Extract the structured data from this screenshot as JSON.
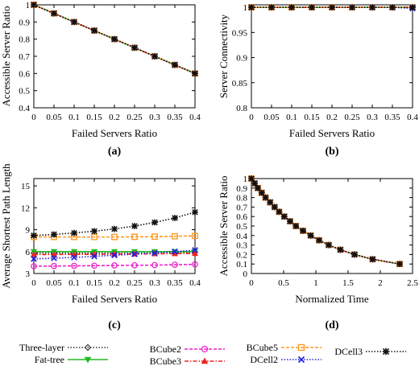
{
  "chart_data": [
    {
      "id": "a",
      "panel_label": "(a)",
      "type": "line",
      "xlabel": "Failed Servers Ratio",
      "ylabel": "Accessible Server Ratio",
      "xlim": [
        0,
        0.4
      ],
      "ylim": [
        0.4,
        1
      ],
      "xticks": [
        0,
        0.05,
        0.1,
        0.15,
        0.2,
        0.25,
        0.3,
        0.35,
        0.4
      ],
      "xtick_labels": [
        "0",
        "0.05",
        "0.1",
        "0.15",
        "0.2",
        "0.25",
        "0.3",
        "0.35",
        "0.4"
      ],
      "yticks": [
        0.4,
        0.5,
        0.6,
        0.7,
        0.8,
        0.9,
        1
      ],
      "ytick_labels": [
        "0.4",
        "0.5",
        "0.6",
        "0.7",
        "0.8",
        "0.9",
        "1"
      ],
      "x": [
        0,
        0.05,
        0.1,
        0.15,
        0.2,
        0.25,
        0.3,
        0.35,
        0.4
      ],
      "series": [
        {
          "key": "three_layer",
          "values": [
            1,
            0.95,
            0.9,
            0.85,
            0.8,
            0.75,
            0.7,
            0.65,
            0.6
          ]
        },
        {
          "key": "fat_tree",
          "values": [
            1,
            0.95,
            0.9,
            0.85,
            0.8,
            0.75,
            0.7,
            0.65,
            0.6
          ]
        },
        {
          "key": "bcube2",
          "values": [
            1,
            0.95,
            0.9,
            0.85,
            0.8,
            0.75,
            0.7,
            0.65,
            0.6
          ]
        },
        {
          "key": "bcube3",
          "values": [
            1,
            0.95,
            0.9,
            0.85,
            0.8,
            0.75,
            0.7,
            0.65,
            0.6
          ]
        },
        {
          "key": "bcube5",
          "values": [
            1,
            0.95,
            0.9,
            0.85,
            0.8,
            0.75,
            0.7,
            0.65,
            0.6
          ]
        },
        {
          "key": "dcell2",
          "values": [
            1,
            0.95,
            0.9,
            0.85,
            0.8,
            0.75,
            0.7,
            0.65,
            0.6
          ]
        },
        {
          "key": "dcell3",
          "values": [
            1,
            0.95,
            0.9,
            0.85,
            0.8,
            0.75,
            0.7,
            0.65,
            0.6
          ]
        }
      ]
    },
    {
      "id": "b",
      "panel_label": "(b)",
      "type": "line",
      "xlabel": "Failed Servers Ratio",
      "ylabel": "Server Connectivity",
      "xlim": [
        0,
        0.4
      ],
      "ylim": [
        0.8,
        1.005
      ],
      "xticks": [
        0,
        0.05,
        0.1,
        0.15,
        0.2,
        0.25,
        0.3,
        0.35,
        0.4
      ],
      "xtick_labels": [
        "0",
        "0.05",
        "0.1",
        "0.15",
        "0.2",
        "0.25",
        "0.3",
        "0.35",
        "0.4"
      ],
      "yticks": [
        0.8,
        0.85,
        0.9,
        0.95,
        1
      ],
      "ytick_labels": [
        "0.8",
        "0.85",
        "0.9",
        "0.95",
        "1"
      ],
      "x": [
        0,
        0.05,
        0.1,
        0.15,
        0.2,
        0.25,
        0.3,
        0.35,
        0.4
      ],
      "series": [
        {
          "key": "three_layer",
          "values": [
            1,
            1,
            1,
            1,
            1,
            1,
            1,
            1,
            1
          ]
        },
        {
          "key": "fat_tree",
          "values": [
            1,
            1,
            1,
            1,
            1,
            1,
            1,
            1,
            1
          ]
        },
        {
          "key": "bcube2",
          "values": [
            1,
            1,
            1,
            1,
            1,
            1,
            1,
            1,
            1
          ]
        },
        {
          "key": "bcube3",
          "values": [
            1,
            1,
            1,
            1,
            1,
            1,
            1,
            1,
            1
          ]
        },
        {
          "key": "bcube5",
          "values": [
            1,
            1,
            1,
            1,
            1,
            1,
            1,
            1,
            1
          ]
        },
        {
          "key": "dcell2",
          "values": [
            1,
            1,
            1,
            1,
            1,
            1,
            1,
            1,
            0.998
          ]
        },
        {
          "key": "dcell3",
          "values": [
            1,
            1,
            1,
            1,
            1,
            1,
            1,
            1,
            1
          ]
        }
      ]
    },
    {
      "id": "c",
      "panel_label": "(c)",
      "type": "line",
      "xlabel": "Failed Servers Ratio",
      "ylabel": "Average Shortest Path Length",
      "xlim": [
        0,
        0.4
      ],
      "ylim": [
        3,
        16
      ],
      "xticks": [
        0,
        0.05,
        0.1,
        0.15,
        0.2,
        0.25,
        0.3,
        0.35,
        0.4
      ],
      "xtick_labels": [
        "0",
        "0.05",
        "0.1",
        "0.15",
        "0.2",
        "0.25",
        "0.3",
        "0.35",
        "0.4"
      ],
      "yticks": [
        3,
        6,
        9,
        12,
        15
      ],
      "ytick_labels": [
        "3",
        "6",
        "9",
        "12",
        "15"
      ],
      "x": [
        0,
        0.05,
        0.1,
        0.15,
        0.2,
        0.25,
        0.3,
        0.35,
        0.4
      ],
      "series": [
        {
          "key": "three_layer",
          "values": [
            5.8,
            5.8,
            5.8,
            5.8,
            5.8,
            5.8,
            5.8,
            5.85,
            5.9
          ]
        },
        {
          "key": "fat_tree",
          "values": [
            6,
            6,
            6,
            6,
            6,
            6,
            6,
            6,
            6
          ]
        },
        {
          "key": "bcube2",
          "values": [
            4,
            4.02,
            4.05,
            4.07,
            4.1,
            4.12,
            4.15,
            4.2,
            4.25
          ]
        },
        {
          "key": "bcube3",
          "values": [
            5.6,
            5.6,
            5.62,
            5.63,
            5.65,
            5.67,
            5.7,
            5.72,
            5.75
          ]
        },
        {
          "key": "bcube5",
          "values": [
            8,
            8,
            8,
            8,
            8,
            8.02,
            8.05,
            8.1,
            8.15
          ]
        },
        {
          "key": "dcell2",
          "values": [
            5,
            5.1,
            5.2,
            5.35,
            5.5,
            5.65,
            5.8,
            6,
            6.2
          ]
        },
        {
          "key": "dcell3",
          "values": [
            8.2,
            8.35,
            8.55,
            8.8,
            9.1,
            9.5,
            10,
            10.6,
            11.4
          ]
        }
      ]
    },
    {
      "id": "d",
      "panel_label": "(d)",
      "type": "line",
      "xlabel": "Normalized Time",
      "ylabel": "Accessible Server Ratio",
      "xlim": [
        0,
        2.5
      ],
      "ylim": [
        0,
        1
      ],
      "xticks": [
        0,
        0.5,
        1,
        1.5,
        2,
        2.5
      ],
      "xtick_labels": [
        "0",
        "0.5",
        "1",
        "1.5",
        "2",
        "2.5"
      ],
      "yticks": [
        0,
        0.1,
        0.2,
        0.3,
        0.4,
        0.5,
        0.6,
        0.7,
        0.8,
        0.9,
        1
      ],
      "ytick_labels": [
        "0",
        "0.1",
        "0.2",
        "0.3",
        "0.4",
        "0.5",
        "0.6",
        "0.7",
        "0.8",
        "0.9",
        "1"
      ],
      "x": [
        0,
        0.05,
        0.1,
        0.16,
        0.22,
        0.29,
        0.36,
        0.43,
        0.51,
        0.6,
        0.69,
        0.8,
        0.92,
        1.05,
        1.2,
        1.38,
        1.6,
        1.88,
        2.3
      ],
      "series": [
        {
          "key": "three_layer",
          "values": [
            1,
            0.95,
            0.9,
            0.85,
            0.8,
            0.75,
            0.7,
            0.65,
            0.6,
            0.55,
            0.5,
            0.45,
            0.4,
            0.35,
            0.3,
            0.25,
            0.2,
            0.15,
            0.1
          ]
        },
        {
          "key": "fat_tree",
          "values": [
            1,
            0.95,
            0.9,
            0.85,
            0.8,
            0.75,
            0.7,
            0.65,
            0.6,
            0.55,
            0.5,
            0.45,
            0.4,
            0.35,
            0.3,
            0.25,
            0.2,
            0.15,
            0.1
          ]
        },
        {
          "key": "bcube2",
          "values": [
            1,
            0.95,
            0.9,
            0.85,
            0.8,
            0.75,
            0.7,
            0.65,
            0.6,
            0.55,
            0.5,
            0.45,
            0.4,
            0.35,
            0.3,
            0.25,
            0.2,
            0.15,
            0.1
          ]
        },
        {
          "key": "bcube3",
          "values": [
            1,
            0.95,
            0.9,
            0.85,
            0.8,
            0.75,
            0.7,
            0.65,
            0.6,
            0.55,
            0.5,
            0.45,
            0.4,
            0.35,
            0.3,
            0.25,
            0.2,
            0.15,
            0.1
          ]
        },
        {
          "key": "bcube5",
          "values": [
            1,
            0.95,
            0.9,
            0.85,
            0.8,
            0.75,
            0.7,
            0.65,
            0.6,
            0.55,
            0.5,
            0.45,
            0.4,
            0.35,
            0.3,
            0.25,
            0.2,
            0.15,
            0.1
          ]
        },
        {
          "key": "dcell2",
          "values": [
            1,
            0.95,
            0.9,
            0.85,
            0.8,
            0.75,
            0.7,
            0.65,
            0.6,
            0.55,
            0.5,
            0.45,
            0.4,
            0.35,
            0.3,
            0.25,
            0.2,
            0.15,
            0.1
          ]
        },
        {
          "key": "dcell3",
          "values": [
            1,
            0.95,
            0.9,
            0.85,
            0.8,
            0.75,
            0.7,
            0.65,
            0.6,
            0.55,
            0.5,
            0.45,
            0.4,
            0.35,
            0.3,
            0.25,
            0.2,
            0.15,
            0.1
          ]
        }
      ]
    }
  ],
  "legend": {
    "placement": "bottom",
    "entries": [
      {
        "key": "three_layer",
        "label": "Three-layer",
        "color": "#333333",
        "marker": "diamond",
        "dash": "dot"
      },
      {
        "key": "fat_tree",
        "label": "Fat-tree",
        "color": "#22bb22",
        "marker": "triangle-down",
        "dash": "solid"
      },
      {
        "key": "bcube2",
        "label": "BCube2",
        "color": "#ee22cc",
        "marker": "circle",
        "dash": "dash"
      },
      {
        "key": "bcube3",
        "label": "BCube3",
        "color": "#ee2222",
        "marker": "triangle-up",
        "dash": "dashdot"
      },
      {
        "key": "bcube5",
        "label": "BCube5",
        "color": "#ff9922",
        "marker": "square",
        "dash": "dash"
      },
      {
        "key": "dcell2",
        "label": "DCell2",
        "color": "#2222dd",
        "marker": "x",
        "dash": "dot"
      },
      {
        "key": "dcell3",
        "label": "DCell3",
        "color": "#111111",
        "marker": "star",
        "dash": "dot"
      }
    ]
  }
}
